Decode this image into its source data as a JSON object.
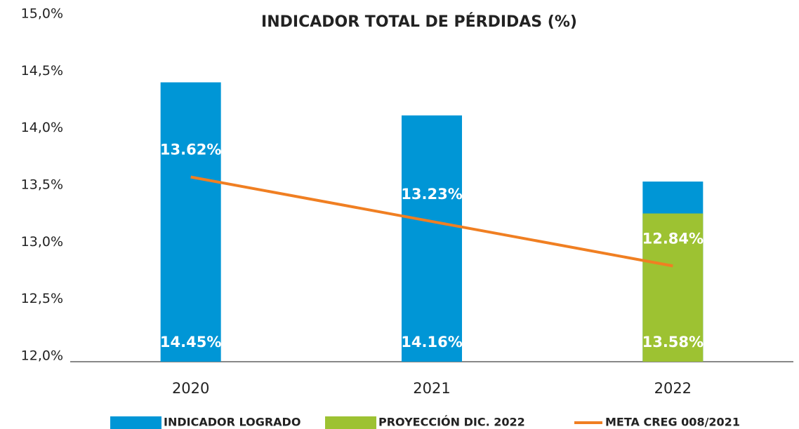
{
  "chart_data": {
    "type": "bar",
    "title": "INDICADOR TOTAL DE PÉRDIDAS (%)",
    "categories": [
      "2020",
      "2021",
      "2022"
    ],
    "series": [
      {
        "name": "INDICADOR LOGRADO",
        "type": "bar",
        "color": "#0096d6",
        "values": [
          14.45,
          14.16,
          13.58
        ],
        "value_labels": [
          "14.45%",
          "14.16%",
          "13.58%"
        ]
      },
      {
        "name": "PROYECCIÓN DIC. 2022",
        "type": "bar",
        "color": "#9dc232",
        "values": [
          null,
          null,
          13.3
        ]
      },
      {
        "name": "META CREG 008/2021",
        "type": "line",
        "color": "#f07f22",
        "values": [
          13.62,
          13.23,
          12.84
        ],
        "value_labels": [
          "13.62%",
          "13.23%",
          "12.84%"
        ]
      }
    ],
    "ylim": [
      12,
      15
    ],
    "yticks": [
      {
        "value": 12,
        "label": "12,0%"
      },
      {
        "value": 12.5,
        "label": "12,5%"
      },
      {
        "value": 13,
        "label": "13,0%"
      },
      {
        "value": 13.5,
        "label": "13,5%"
      },
      {
        "value": 14,
        "label": "14,0%"
      },
      {
        "value": 14.5,
        "label": "14,5%"
      },
      {
        "value": 15,
        "label": "15,0%"
      }
    ],
    "grid": false
  }
}
